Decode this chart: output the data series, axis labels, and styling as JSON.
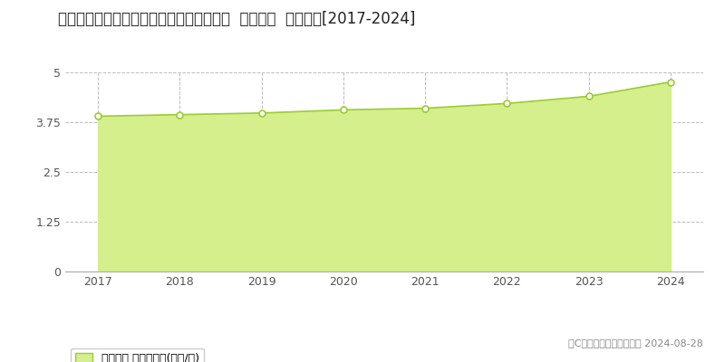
{
  "title": "鸟取県米子市西福原７丁目１０６２番１外  地価公示  地価推移[2017-2024]",
  "years": [
    2017,
    2018,
    2019,
    2020,
    2021,
    2022,
    2023,
    2024
  ],
  "values": [
    3.9,
    3.94,
    3.98,
    4.06,
    4.1,
    4.22,
    4.4,
    4.76
  ],
  "line_color": "#9acd32",
  "fill_color": "#d4ef8b",
  "marker_color": "#ffffff",
  "marker_edge_color": "#9acd32",
  "background_color": "#ffffff",
  "grid_color": "#bbbbbb",
  "ylim": [
    0,
    5
  ],
  "yticks": [
    0,
    1.25,
    2.5,
    3.75,
    5
  ],
  "ytick_labels": [
    "0",
    "1.25",
    "2.5",
    "3.75",
    "5"
  ],
  "legend_label": "地価公示 平均坪単価(万円/坪)",
  "copyright_text": "（C）土地価格ドットコム 2024-08-28",
  "title_fontsize": 12,
  "tick_fontsize": 9,
  "legend_fontsize": 9,
  "copyright_fontsize": 8,
  "xlim_left": 2016.6,
  "xlim_right": 2024.4
}
